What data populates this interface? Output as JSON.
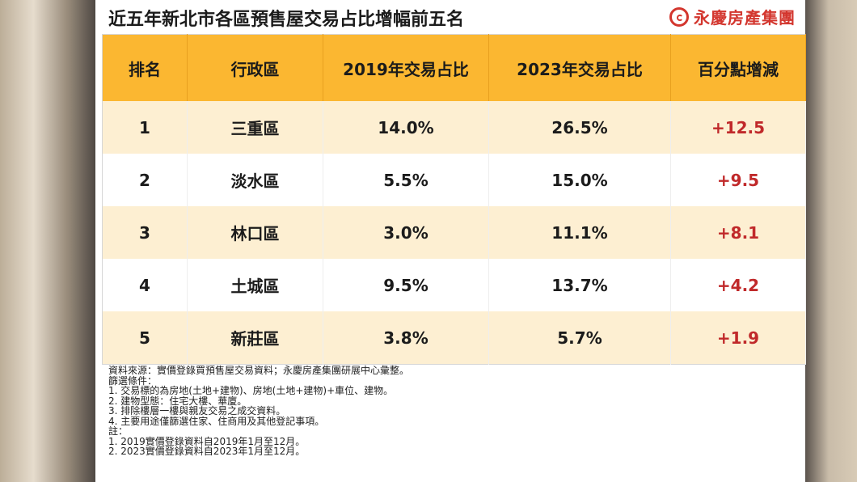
{
  "title": "近五年新北市各區預售屋交易占比增幅前五名",
  "brand": {
    "name": "永慶房產集團",
    "icon": "yungching-logo-icon",
    "color": "#d3362e"
  },
  "colors": {
    "header": "#fbb731",
    "stripe": "#fdefd2",
    "delta": "#c0292a"
  },
  "chart_data": {
    "type": "table",
    "columns": [
      "排名",
      "行政區",
      "2019年交易占比",
      "2023年交易占比",
      "百分點增減"
    ],
    "rows": [
      [
        "1",
        "三重區",
        "14.0%",
        "26.5%",
        "+12.5"
      ],
      [
        "2",
        "淡水區",
        "5.5%",
        "15.0%",
        "+9.5"
      ],
      [
        "3",
        "林口區",
        "3.0%",
        "11.1%",
        "+8.1"
      ],
      [
        "4",
        "土城區",
        "9.5%",
        "13.7%",
        "+4.2"
      ],
      [
        "5",
        "新莊區",
        "3.8%",
        "5.7%",
        "+1.9"
      ]
    ]
  },
  "notes": [
    "資料來源：實價登錄買預售屋交易資料；永慶房產集團研展中心彙整。",
    "篩選條件：",
    "1. 交易標的為房地(土地+建物)、房地(土地+建物)+車位、建物。",
    "2. 建物型態：住宅大樓、華廈。",
    "3. 排除樓層一樓與親友交易之成交資料。",
    "4. 主要用途僅篩選住家、住商用及其他登記事項。",
    "註：",
    "1. 2019實價登錄資料自2019年1月至12月。",
    "2. 2023實價登錄資料自2023年1月至12月。"
  ]
}
